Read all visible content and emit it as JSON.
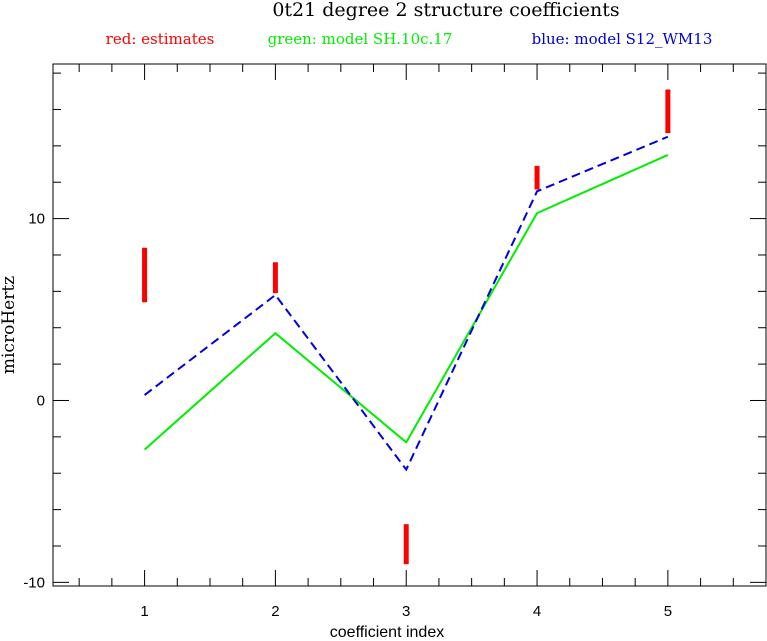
{
  "chart_data": {
    "type": "line",
    "title": "0t21 degree 2 structure coefficients",
    "legend": [
      {
        "text": "red: estimates",
        "color": "#ff0000"
      },
      {
        "text": "green: model SH.10c.17",
        "color": "#00ee00"
      },
      {
        "text": "blue: model S12_WM13",
        "color": "#0000dd"
      }
    ],
    "xlabel": "coefficient index",
    "ylabel": "microHertz",
    "xlim": [
      0.3,
      5.75
    ],
    "ylim": [
      -10.2,
      18.5
    ],
    "x_ticks": [
      1,
      2,
      3,
      4,
      5
    ],
    "y_ticks": [
      -10,
      0,
      10
    ],
    "x": [
      1,
      2,
      3,
      4,
      5
    ],
    "series": [
      {
        "name": "green: model SH.10c.17",
        "color": "#00ee00",
        "style": "solid",
        "values": [
          -2.7,
          3.7,
          -2.3,
          10.3,
          13.5
        ]
      },
      {
        "name": "blue: model S12_WM13",
        "color": "#0000dd",
        "style": "dashed",
        "values": [
          0.3,
          5.8,
          -3.8,
          11.5,
          14.5
        ]
      }
    ],
    "estimates": {
      "name": "red: estimates",
      "color": "#ff0000",
      "ranges": [
        [
          5.4,
          8.4
        ],
        [
          5.9,
          7.6
        ],
        [
          -9.0,
          -6.8
        ],
        [
          11.6,
          12.9
        ],
        [
          14.7,
          17.1
        ]
      ]
    }
  }
}
